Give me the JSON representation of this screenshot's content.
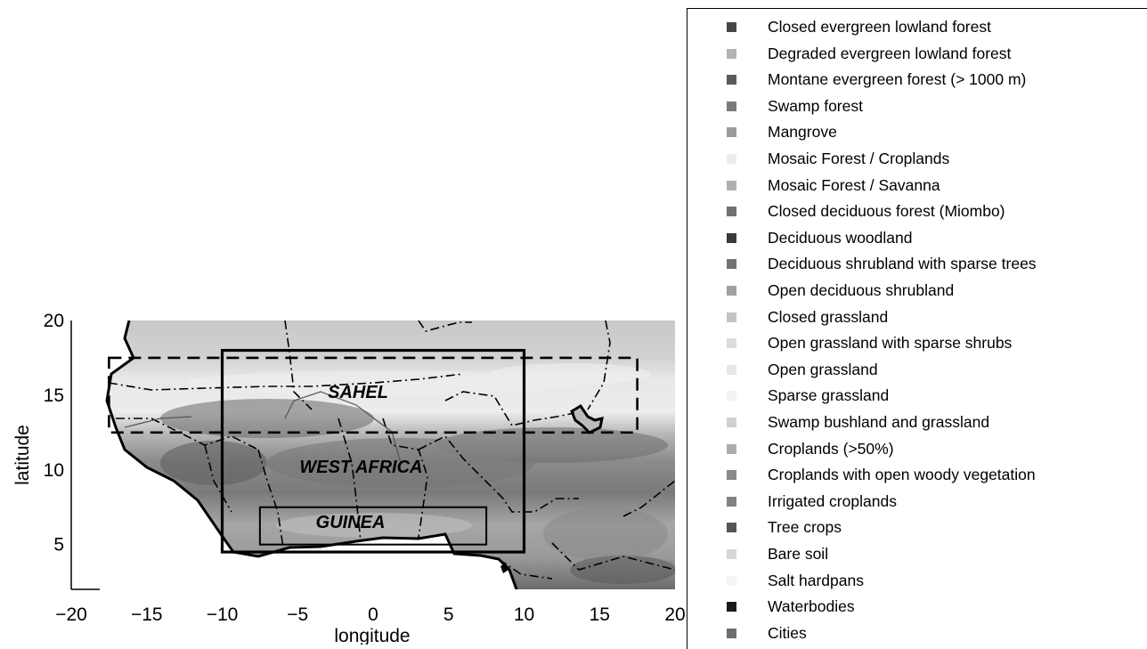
{
  "map": {
    "xlabel": "longitude",
    "ylabel": "latitude",
    "xlim": [
      -20,
      20
    ],
    "ylim": [
      2,
      20
    ],
    "xticks": [
      "−20",
      "−15",
      "−10",
      "−5",
      "0",
      "5",
      "10",
      "15",
      "20"
    ],
    "yticks": [
      "5",
      "10",
      "15",
      "20"
    ],
    "regions": [
      {
        "name": "SAHEL",
        "lon_min": -17.5,
        "lon_max": 17.5,
        "lat_min": 12.5,
        "lat_max": 17.5,
        "style": "dashed"
      },
      {
        "name": "WEST AFRICA",
        "lon_min": -10,
        "lon_max": 10,
        "lat_min": 4.5,
        "lat_max": 18,
        "style": "thick-solid"
      },
      {
        "name": "GUINEA",
        "lon_min": -7.5,
        "lon_max": 7.5,
        "lat_min": 5,
        "lat_max": 7.5,
        "style": "thin-solid"
      }
    ]
  },
  "legend": {
    "items": [
      {
        "label": "Closed evergreen lowland forest",
        "color": "#474747"
      },
      {
        "label": "Degraded evergreen lowland forest",
        "color": "#b4b4b4"
      },
      {
        "label": "Montane evergreen forest (> 1000 m)",
        "color": "#5a5a5a"
      },
      {
        "label": "Swamp forest",
        "color": "#7a7a7a"
      },
      {
        "label": "Mangrove",
        "color": "#9a9a9a"
      },
      {
        "label": "Mosaic Forest / Croplands",
        "color": "#ececec"
      },
      {
        "label": "Mosaic Forest / Savanna",
        "color": "#b0b0b0"
      },
      {
        "label": "Closed deciduous forest (Miombo)",
        "color": "#727272"
      },
      {
        "label": "Deciduous woodland",
        "color": "#3a3a3a"
      },
      {
        "label": "Deciduous shrubland with sparse trees",
        "color": "#737373"
      },
      {
        "label": "Open deciduous shrubland",
        "color": "#a0a0a0"
      },
      {
        "label": "Closed grassland",
        "color": "#c4c4c4"
      },
      {
        "label": "Open grassland with sparse shrubs",
        "color": "#dcdcdc"
      },
      {
        "label": "Open grassland",
        "color": "#e6e6e6"
      },
      {
        "label": "Sparse grassland",
        "color": "#f2f2f2"
      },
      {
        "label": "Swamp bushland and grassland",
        "color": "#d0d0d0"
      },
      {
        "label": "Croplands (>50%)",
        "color": "#adadad"
      },
      {
        "label": "Croplands with open woody vegetation",
        "color": "#8a8a8a"
      },
      {
        "label": "Irrigated croplands",
        "color": "#828282"
      },
      {
        "label": "Tree crops",
        "color": "#555555"
      },
      {
        "label": "Bare soil",
        "color": "#d6d6d6"
      },
      {
        "label": "Salt hardpans",
        "color": "#f4f4f4"
      },
      {
        "label": "Waterbodies",
        "color": "#1a1a1a"
      },
      {
        "label": "Cities",
        "color": "#6e6e6e"
      }
    ]
  }
}
